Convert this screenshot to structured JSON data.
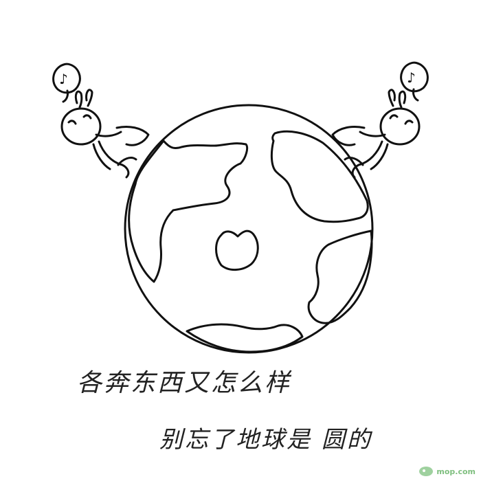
{
  "illustration": {
    "subject": "globe with two rabbit characters",
    "globe_icon": "earth-icon",
    "left_bubble_icon": "music-note-icon",
    "right_bubble_icon": "music-note-icon",
    "line_color": "#111111",
    "background_color": "#ffffff"
  },
  "captions": {
    "line1": "各奔东西又怎么样",
    "line2": "别忘了地球是 圆的"
  },
  "watermark": {
    "text": "mop.com",
    "color": "#7fbf7f"
  }
}
